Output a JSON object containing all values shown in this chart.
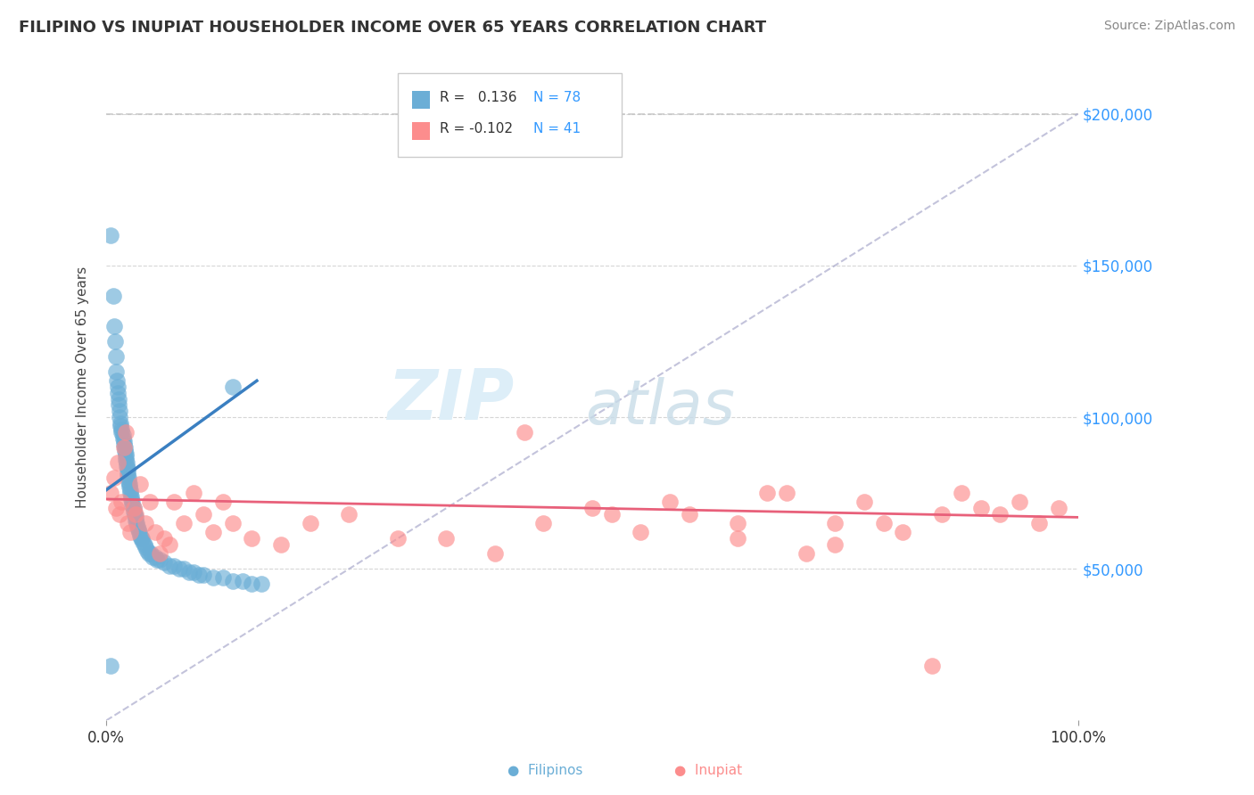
{
  "title": "FILIPINO VS INUPIAT HOUSEHOLDER INCOME OVER 65 YEARS CORRELATION CHART",
  "source": "Source: ZipAtlas.com",
  "ylabel": "Householder Income Over 65 years",
  "xlim": [
    0,
    1.0
  ],
  "ylim": [
    0,
    220000
  ],
  "ytick_values": [
    50000,
    100000,
    150000,
    200000
  ],
  "legend_R_filipino": "0.136",
  "legend_N_filipino": "78",
  "legend_R_inupiat": "-0.102",
  "legend_N_inupiat": "41",
  "filipino_color": "#6baed6",
  "inupiat_color": "#fc8d8d",
  "trend_filipino_color": "#3a7fc1",
  "trend_inupiat_color": "#e8607a",
  "background_color": "#ffffff",
  "filipinos_x": [
    0.005,
    0.007,
    0.008,
    0.009,
    0.01,
    0.01,
    0.011,
    0.012,
    0.012,
    0.013,
    0.013,
    0.014,
    0.014,
    0.015,
    0.015,
    0.016,
    0.016,
    0.017,
    0.017,
    0.018,
    0.018,
    0.019,
    0.019,
    0.02,
    0.02,
    0.02,
    0.021,
    0.021,
    0.022,
    0.022,
    0.022,
    0.023,
    0.023,
    0.024,
    0.024,
    0.025,
    0.025,
    0.026,
    0.026,
    0.027,
    0.027,
    0.028,
    0.028,
    0.029,
    0.03,
    0.03,
    0.031,
    0.032,
    0.033,
    0.034,
    0.035,
    0.036,
    0.037,
    0.038,
    0.039,
    0.04,
    0.042,
    0.044,
    0.046,
    0.048,
    0.05,
    0.052,
    0.055,
    0.06,
    0.065,
    0.07,
    0.075,
    0.08,
    0.085,
    0.09,
    0.095,
    0.1,
    0.11,
    0.12,
    0.13,
    0.14,
    0.15,
    0.16
  ],
  "filipinos_y": [
    160000,
    140000,
    130000,
    125000,
    120000,
    115000,
    112000,
    110000,
    108000,
    106000,
    104000,
    102000,
    100000,
    98000,
    97000,
    96000,
    95000,
    94000,
    93000,
    92000,
    91000,
    90000,
    89000,
    88000,
    87000,
    86000,
    85000,
    84000,
    83000,
    82000,
    81000,
    80000,
    79000,
    78000,
    77000,
    76000,
    75000,
    74000,
    73000,
    72000,
    71000,
    70000,
    69000,
    68000,
    67000,
    66000,
    65000,
    64000,
    63000,
    62000,
    61000,
    60000,
    60000,
    59000,
    58000,
    57000,
    56000,
    55000,
    55000,
    54000,
    54000,
    53000,
    53000,
    52000,
    51000,
    51000,
    50000,
    50000,
    49000,
    49000,
    48000,
    48000,
    47000,
    47000,
    46000,
    46000,
    45000,
    45000
  ],
  "inupiat_x": [
    0.005,
    0.008,
    0.01,
    0.012,
    0.014,
    0.016,
    0.018,
    0.02,
    0.022,
    0.025,
    0.028,
    0.03,
    0.035,
    0.04,
    0.045,
    0.05,
    0.055,
    0.06,
    0.065,
    0.07,
    0.08,
    0.09,
    0.1,
    0.11,
    0.12,
    0.13,
    0.15,
    0.18,
    0.21,
    0.25,
    0.3,
    0.35,
    0.4,
    0.45,
    0.5,
    0.55,
    0.6,
    0.65,
    0.7,
    0.75,
    0.8
  ],
  "inupiat_y": [
    75000,
    80000,
    70000,
    85000,
    68000,
    72000,
    90000,
    95000,
    65000,
    62000,
    70000,
    68000,
    78000,
    65000,
    72000,
    62000,
    55000,
    60000,
    58000,
    72000,
    65000,
    75000,
    68000,
    62000,
    72000,
    65000,
    60000,
    58000,
    65000,
    68000,
    60000,
    60000,
    55000,
    65000,
    70000,
    62000,
    68000,
    60000,
    75000,
    58000,
    65000
  ],
  "inupiat_x_extra": [
    0.43,
    0.52,
    0.58,
    0.65,
    0.68,
    0.72,
    0.75,
    0.78,
    0.82,
    0.86,
    0.88,
    0.9,
    0.92,
    0.94,
    0.96,
    0.98
  ],
  "inupiat_y_extra": [
    95000,
    68000,
    72000,
    65000,
    75000,
    55000,
    65000,
    72000,
    62000,
    68000,
    75000,
    70000,
    68000,
    72000,
    65000,
    70000
  ],
  "inupiat_outlier_x": [
    0.85
  ],
  "inupiat_outlier_y": [
    18000
  ],
  "filipino_outlier1_x": [
    0.005
  ],
  "filipino_outlier1_y": [
    160000
  ],
  "filipino_outlier2_x": [
    0.007
  ],
  "filipino_outlier2_y": [
    140000
  ],
  "filipino_iso_x": [
    0.13
  ],
  "filipino_iso_y": [
    110000
  ],
  "filipino_bottom_x": [
    0.005
  ],
  "filipino_bottom_y": [
    18000
  ]
}
